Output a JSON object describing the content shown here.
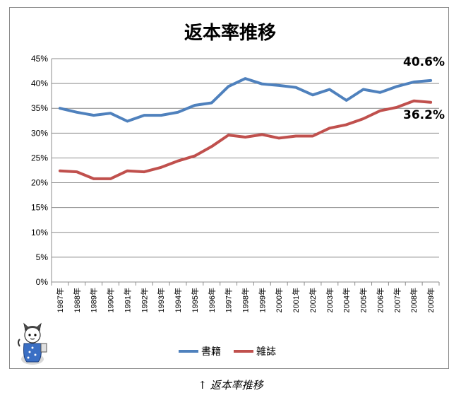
{
  "chart_data": {
    "type": "line",
    "title": "返本率推移",
    "xlabel": "",
    "ylabel": "",
    "categories": [
      "1987年",
      "1988年",
      "1989年",
      "1990年",
      "1991年",
      "1992年",
      "1993年",
      "1994年",
      "1995年",
      "1996年",
      "1997年",
      "1998年",
      "1999年",
      "2000年",
      "2001年",
      "2002年",
      "2003年",
      "2004年",
      "2005年",
      "2006年",
      "2007年",
      "2008年",
      "2009年"
    ],
    "ylim": [
      0,
      45
    ],
    "yticks": [
      "0%",
      "5%",
      "10%",
      "15%",
      "20%",
      "25%",
      "30%",
      "35%",
      "40%",
      "45%"
    ],
    "grid": true,
    "legend_position": "bottom",
    "series": [
      {
        "name": "書籍",
        "color": "#4F81BD",
        "values": [
          35.0,
          34.2,
          33.6,
          34.0,
          32.4,
          33.6,
          33.6,
          34.2,
          35.6,
          36.1,
          39.4,
          41.0,
          39.9,
          39.6,
          39.2,
          37.7,
          38.8,
          36.6,
          38.8,
          38.2,
          39.4,
          40.3,
          40.6
        ],
        "end_label": "40.6%"
      },
      {
        "name": "雑誌",
        "color": "#C0504D",
        "values": [
          22.4,
          22.2,
          20.8,
          20.8,
          22.4,
          22.2,
          23.1,
          24.4,
          25.4,
          27.3,
          29.6,
          29.2,
          29.7,
          29.0,
          29.4,
          29.4,
          31.0,
          31.7,
          32.9,
          34.5,
          35.2,
          36.5,
          36.2
        ],
        "end_label": "36.2%"
      }
    ]
  },
  "caption": {
    "arrow": "↑",
    "text": "返本率推移"
  }
}
